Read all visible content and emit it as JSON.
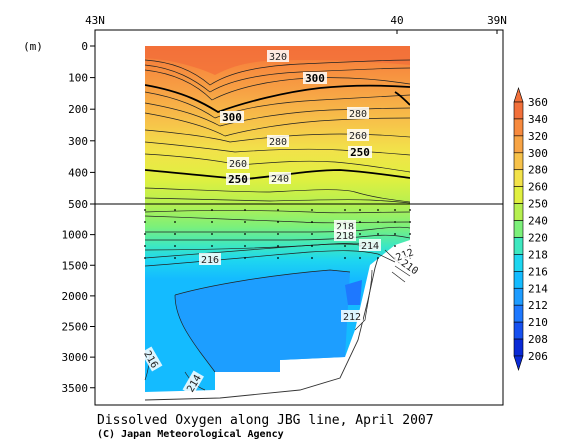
{
  "chart_data": {
    "type": "contour",
    "title": "Dissolved Oxygen along JBG line, April 2007",
    "credit": "(C) Japan Meteorological Agency",
    "ylabel": "(m)",
    "x_ticks": [
      "43N",
      "40",
      "39N"
    ],
    "y_ticks_upper": [
      "0",
      "100",
      "200",
      "300",
      "400",
      "500"
    ],
    "y_ticks_lower": [
      "1000",
      "1500",
      "2000",
      "2500",
      "3000",
      "3500"
    ],
    "y_axis": {
      "upper_range": [
        0,
        500
      ],
      "lower_range": [
        500,
        3700
      ],
      "scale_break_at": 500
    },
    "colorbar": {
      "labels": [
        "206",
        "208",
        "210",
        "212",
        "214",
        "216",
        "218",
        "220",
        "240",
        "250",
        "260",
        "280",
        "300",
        "320",
        "340",
        "360"
      ],
      "colors": [
        "#0a2ad6",
        "#1650f0",
        "#1e78ff",
        "#1e9cff",
        "#14bbff",
        "#1ed6f0",
        "#3ee8c0",
        "#7cf07a",
        "#b6f050",
        "#e0f040",
        "#f2e24a",
        "#f7c24a",
        "#f7a445",
        "#f78a3e",
        "#f2703a"
      ]
    },
    "contour_labels": [
      {
        "text": "320",
        "bold": false
      },
      {
        "text": "300",
        "bold": true
      },
      {
        "text": "300",
        "bold": true
      },
      {
        "text": "280",
        "bold": false
      },
      {
        "text": "280",
        "bold": false
      },
      {
        "text": "260",
        "bold": false
      },
      {
        "text": "260",
        "bold": false
      },
      {
        "text": "250",
        "bold": true
      },
      {
        "text": "250",
        "bold": true
      },
      {
        "text": "240",
        "bold": false
      },
      {
        "text": "218",
        "bold": false
      },
      {
        "text": "218",
        "bold": false
      },
      {
        "text": "214",
        "bold": false
      },
      {
        "text": "216",
        "bold": false
      },
      {
        "text": "212",
        "bold": false
      },
      {
        "text": "210",
        "bold": false
      },
      {
        "text": "212",
        "bold": false
      },
      {
        "text": "216",
        "bold": false
      },
      {
        "text": "214",
        "bold": false
      }
    ]
  }
}
